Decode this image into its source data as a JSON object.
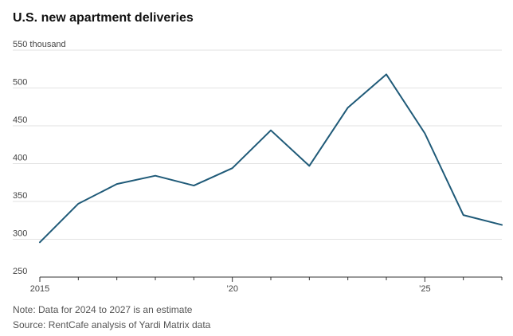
{
  "chart_data": {
    "type": "line",
    "title": "U.S. new apartment deliveries",
    "xlabel": "",
    "ylabel": "",
    "y_unit_label": "550 thousand",
    "x": [
      2015,
      2016,
      2017,
      2018,
      2019,
      2020,
      2021,
      2022,
      2023,
      2024,
      2025,
      2026,
      2027
    ],
    "series": [
      {
        "values": [
          296,
          347,
          373,
          384,
          371,
          394,
          444,
          397,
          474,
          518,
          440,
          332,
          319
        ]
      }
    ],
    "ylim": [
      250,
      550
    ],
    "yticks": [
      250,
      300,
      350,
      400,
      450,
      500,
      550
    ],
    "ytick_labels": [
      "250",
      "300",
      "350",
      "400",
      "450",
      "500",
      "550 thousand"
    ],
    "xticks": [
      2015,
      2020,
      2025
    ],
    "xtick_labels": [
      "2015",
      "’20",
      "’25"
    ],
    "xlim": [
      2015,
      2027
    ],
    "grid": true,
    "line_color": "#1f5a78",
    "grid_color": "#e2e2e2",
    "axis_color": "#333333"
  },
  "notes": {
    "note": "Note: Data for 2024 to 2027 is an estimate",
    "source": "Source: RentCafe analysis of Yardi Matrix data"
  }
}
